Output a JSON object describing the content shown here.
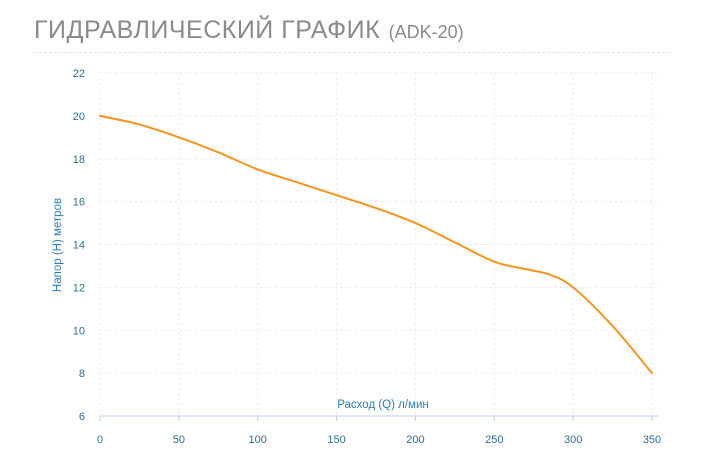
{
  "header": {
    "title": "ГИДРАВЛИЧЕСКИЙ ГРАФИК",
    "subtitle": "(ADK-20)"
  },
  "colors": {
    "curve": "#f7941d",
    "axis_text": "#2e6e92",
    "axis_title": "#2a7fb8",
    "grid": "#e8e8e8",
    "x_axis_line": "#b9d3e4",
    "title_text": "#8a8a8a"
  },
  "chart_data": {
    "type": "line",
    "xlabel": "Расход (Q) л/мин",
    "ylabel": "Напор (H) метров",
    "xlim": [
      0,
      350
    ],
    "ylim": [
      6,
      22
    ],
    "x_ticks": [
      0,
      50,
      100,
      150,
      200,
      250,
      300,
      350
    ],
    "y_ticks": [
      6,
      8,
      10,
      12,
      14,
      16,
      18,
      20,
      22
    ],
    "grid": true,
    "series": [
      {
        "x": [
          0,
          25,
          50,
          75,
          100,
          125,
          150,
          175,
          200,
          225,
          250,
          270,
          285,
          300,
          325,
          350
        ],
        "y": [
          20,
          19.6,
          19.0,
          18.3,
          17.5,
          16.9,
          16.3,
          15.7,
          15.0,
          14.1,
          13.2,
          12.85,
          12.6,
          12.0,
          10.2,
          8.0
        ]
      }
    ]
  }
}
